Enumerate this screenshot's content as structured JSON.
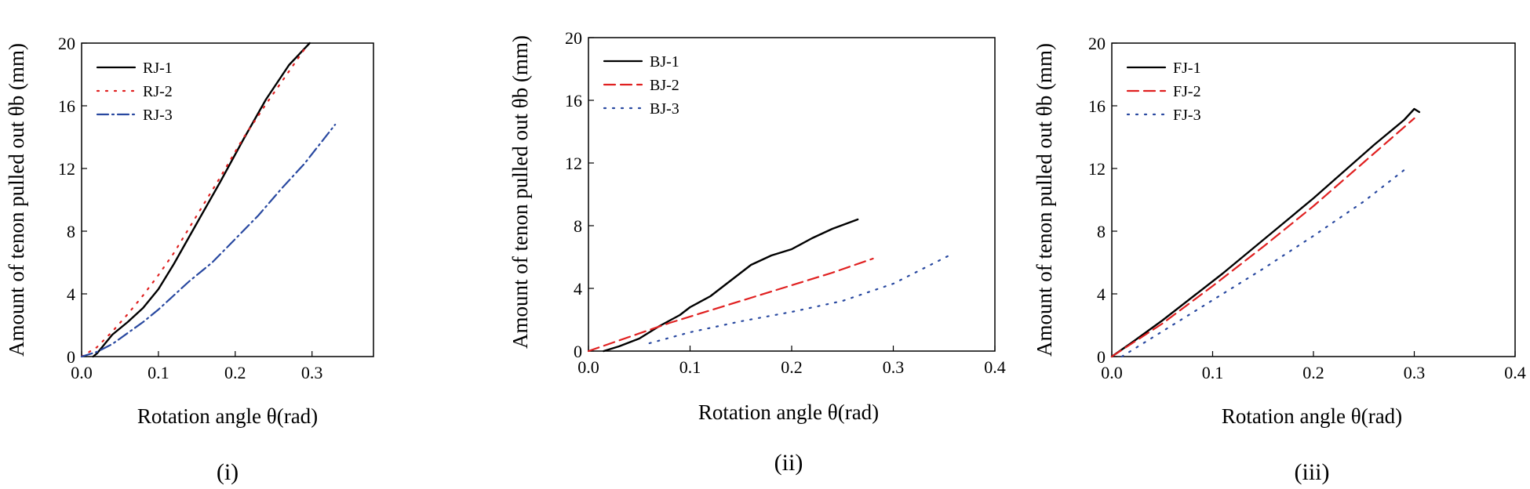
{
  "chart_data": [
    {
      "type": "line",
      "caption": "(i)",
      "xlabel": "Rotation angle θ(rad)",
      "ylabel": "Amount of tenon pulled out θb (mm)",
      "xlim": [
        0,
        0.38
      ],
      "ylim": [
        0,
        20
      ],
      "xticks": [
        0.0,
        0.1,
        0.2,
        0.3
      ],
      "yticks": [
        0,
        4,
        8,
        12,
        16,
        20
      ],
      "xtick_labels": [
        "0.0",
        "0.1",
        "0.2",
        "0.3"
      ],
      "ytick_labels": [
        "0",
        "4",
        "8",
        "12",
        "16",
        "20"
      ],
      "legend_position": "top-left",
      "series": [
        {
          "name": "RJ-1",
          "color": "#000000",
          "dash": "solid",
          "x": [
            0.015,
            0.02,
            0.03,
            0.04,
            0.06,
            0.08,
            0.1,
            0.12,
            0.15,
            0.18,
            0.21,
            0.24,
            0.27,
            0.297
          ],
          "y": [
            0,
            0.2,
            0.8,
            1.4,
            2.2,
            3.1,
            4.3,
            5.9,
            8.5,
            11.1,
            13.8,
            16.4,
            18.6,
            20
          ]
        },
        {
          "name": "RJ-2",
          "color": "#e02020",
          "dash": "dot",
          "x": [
            0,
            0.02,
            0.04,
            0.06,
            0.08,
            0.1,
            0.12,
            0.15,
            0.18,
            0.21,
            0.24,
            0.27,
            0.29
          ],
          "y": [
            0,
            0.6,
            1.6,
            2.7,
            3.9,
            5.2,
            6.6,
            9.0,
            11.4,
            13.9,
            16.1,
            18.2,
            19.6
          ]
        },
        {
          "name": "RJ-3",
          "color": "#2848a0",
          "dash": "dashdot",
          "x": [
            0,
            0.02,
            0.04,
            0.06,
            0.08,
            0.1,
            0.12,
            0.14,
            0.17,
            0.2,
            0.23,
            0.26,
            0.29,
            0.33
          ],
          "y": [
            0,
            0.3,
            0.8,
            1.5,
            2.2,
            3.0,
            3.9,
            4.8,
            6.0,
            7.5,
            9.0,
            10.7,
            12.3,
            14.8
          ]
        }
      ]
    },
    {
      "type": "line",
      "caption": "(ii)",
      "xlabel": "Rotation angle θ(rad)",
      "ylabel": "Amount of tenon pulled out θb (mm)",
      "xlim": [
        0,
        0.4
      ],
      "ylim": [
        0,
        20
      ],
      "xticks": [
        0.0,
        0.1,
        0.2,
        0.3,
        0.4
      ],
      "yticks": [
        0,
        4,
        8,
        12,
        16,
        20
      ],
      "xtick_labels": [
        "0.0",
        "0.1",
        "0.2",
        "0.3",
        "0.4"
      ],
      "ytick_labels": [
        "0",
        "4",
        "8",
        "12",
        "16",
        "20"
      ],
      "legend_position": "top-left",
      "series": [
        {
          "name": "BJ-1",
          "color": "#000000",
          "dash": "solid",
          "x": [
            0.015,
            0.03,
            0.05,
            0.07,
            0.09,
            0.1,
            0.12,
            0.14,
            0.16,
            0.18,
            0.2,
            0.22,
            0.24,
            0.265
          ],
          "y": [
            0,
            0.3,
            0.8,
            1.6,
            2.3,
            2.8,
            3.5,
            4.5,
            5.5,
            6.1,
            6.5,
            7.2,
            7.8,
            8.4
          ]
        },
        {
          "name": "BJ-2",
          "color": "#e02020",
          "dash": "dash",
          "x": [
            0,
            0.04,
            0.08,
            0.12,
            0.16,
            0.2,
            0.24,
            0.28
          ],
          "y": [
            0,
            0.9,
            1.8,
            2.6,
            3.4,
            4.2,
            5.0,
            5.9
          ]
        },
        {
          "name": "BJ-3",
          "color": "#2848a0",
          "dash": "dot",
          "x": [
            0.06,
            0.1,
            0.15,
            0.2,
            0.25,
            0.3,
            0.355
          ],
          "y": [
            0.5,
            1.2,
            1.9,
            2.5,
            3.2,
            4.3,
            6.1
          ]
        }
      ]
    },
    {
      "type": "line",
      "caption": "(iii)",
      "xlabel": "Rotation angle θ(rad)",
      "ylabel": "Amount of tenon pulled out θb (mm)",
      "xlim": [
        0,
        0.4
      ],
      "ylim": [
        0,
        20
      ],
      "xticks": [
        0.0,
        0.1,
        0.2,
        0.3,
        0.4
      ],
      "yticks": [
        0,
        4,
        8,
        12,
        16,
        20
      ],
      "xtick_labels": [
        "0.0",
        "0.1",
        "0.2",
        "0.3",
        "0.4"
      ],
      "ytick_labels": [
        "0",
        "4",
        "8",
        "12",
        "16",
        "20"
      ],
      "legend_position": "top-left",
      "series": [
        {
          "name": "FJ-1",
          "color": "#000000",
          "dash": "solid",
          "x": [
            0,
            0.02,
            0.05,
            0.08,
            0.11,
            0.14,
            0.17,
            0.2,
            0.23,
            0.26,
            0.29,
            0.3,
            0.305
          ],
          "y": [
            0,
            0.9,
            2.3,
            3.8,
            5.3,
            6.9,
            8.5,
            10.1,
            11.8,
            13.5,
            15.1,
            15.8,
            15.6
          ]
        },
        {
          "name": "FJ-2",
          "color": "#e02020",
          "dash": "dash",
          "x": [
            0,
            0.05,
            0.1,
            0.15,
            0.2,
            0.25,
            0.3
          ],
          "y": [
            0,
            2.1,
            4.5,
            7.0,
            9.6,
            12.4,
            15.2
          ]
        },
        {
          "name": "FJ-3",
          "color": "#2848a0",
          "dash": "dot",
          "x": [
            0.01,
            0.05,
            0.1,
            0.15,
            0.2,
            0.25,
            0.29
          ],
          "y": [
            0,
            1.6,
            3.6,
            5.6,
            7.7,
            9.9,
            11.9
          ]
        }
      ]
    }
  ]
}
